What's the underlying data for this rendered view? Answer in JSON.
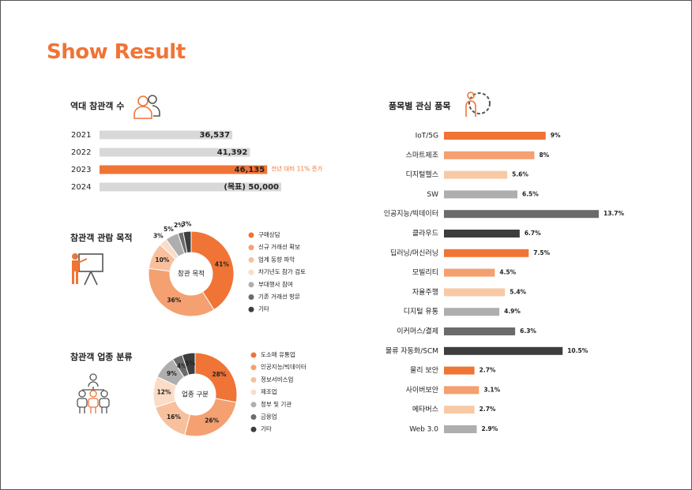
{
  "page": {
    "title": "Show Result",
    "colors": {
      "accent": "#F07436",
      "bar_gray": "#D8D8D8",
      "dark": "#3D3D3D"
    }
  },
  "attendees": {
    "title": "역대 참관객 수",
    "icon": "people-icon",
    "rows": [
      {
        "year": "2021",
        "value": 36537,
        "label": "36,537",
        "highlight": false,
        "note": ""
      },
      {
        "year": "2022",
        "value": 41392,
        "label": "41,392",
        "highlight": false,
        "note": ""
      },
      {
        "year": "2023",
        "value": 46135,
        "label": "46,135",
        "highlight": true,
        "note": "전년 대비 11% 증가"
      },
      {
        "year": "2024",
        "value": 50000,
        "label": "(목표) 50,000",
        "highlight": false,
        "note": ""
      }
    ]
  },
  "purpose": {
    "title": "참관객 관람 목적",
    "icon": "presentation-icon",
    "center_label": "참관 목적"
  },
  "industry": {
    "title": "참관객 업종 분류",
    "icon": "org-chart-icon",
    "center_label": "업종 구분"
  },
  "interest": {
    "title": "품목별 관심 품목",
    "icon": "gear-person-icon"
  },
  "chart_data": [
    {
      "type": "bar",
      "orientation": "horizontal",
      "categories": [
        "2021",
        "2022",
        "2023",
        "2024"
      ],
      "values": [
        36537,
        41392,
        46135,
        50000
      ]
    },
    {
      "type": "pie",
      "donut": true,
      "labels": [
        "구매상담",
        "신규 거래선 확보",
        "업계 동향 파악",
        "차기년도 참가 검토",
        "부대행사 참여",
        "기존 거래선 방문",
        "기타"
      ],
      "values": [
        41,
        36,
        10,
        3,
        5,
        2,
        3
      ],
      "value_labels": [
        "41%",
        "36%",
        "10%",
        "3%",
        "5%",
        "2%",
        "3%"
      ],
      "colors": [
        "#F07436",
        "#F5A070",
        "#F8C09C",
        "#FBDCC6",
        "#AEAEAE",
        "#6B6B6B",
        "#3D3D3D"
      ],
      "legend_position": "right"
    },
    {
      "type": "pie",
      "donut": true,
      "labels": [
        "도소매 유통업",
        "인공지능/빅데이터",
        "정보서비스업",
        "제조업",
        "정부 및 기관",
        "금융업",
        "기타"
      ],
      "values": [
        28,
        26,
        16,
        12,
        9,
        4,
        5
      ],
      "value_labels": [
        "28%",
        "26%",
        "16%",
        "12%",
        "9%",
        "4%",
        "5%"
      ],
      "colors": [
        "#F07436",
        "#F5A070",
        "#F8C09C",
        "#FBDCC6",
        "#AEAEAE",
        "#6B6B6B",
        "#3D3D3D"
      ],
      "legend_position": "right"
    },
    {
      "type": "bar",
      "orientation": "horizontal",
      "categories": [
        "IoT/5G",
        "스마트제조",
        "디지털헬스",
        "SW",
        "인공지능/빅데이터",
        "클라우드",
        "딥러닝/머신러닝",
        "모빌리티",
        "자율주행",
        "디지털 유통",
        "이커머스/결제",
        "물류 자동화/SCM",
        "물리 보안",
        "사이버보안",
        "메타버스",
        "Web 3.0"
      ],
      "values": [
        9,
        8,
        5.6,
        6.5,
        13.7,
        6.7,
        7.5,
        4.5,
        5.4,
        4.9,
        6.3,
        10.5,
        2.7,
        3.1,
        2.7,
        2.9
      ],
      "value_labels": [
        "9%",
        "8%",
        "5.6%",
        "6.5%",
        "13.7%",
        "6.7%",
        "7.5%",
        "4.5%",
        "5.4%",
        "4.9%",
        "6.3%",
        "10.5%",
        "2.7%",
        "3.1%",
        "2.7%",
        "2.9%"
      ],
      "colors": [
        "#F07436",
        "#F5A070",
        "#F8C9A5",
        "#AEAEAE",
        "#6B6B6B",
        "#3D3D3D",
        "#F07436",
        "#F5A070",
        "#F8C9A5",
        "#AEAEAE",
        "#6B6B6B",
        "#3D3D3D",
        "#F07436",
        "#F5A070",
        "#F8C9A5",
        "#AEAEAE"
      ]
    }
  ]
}
